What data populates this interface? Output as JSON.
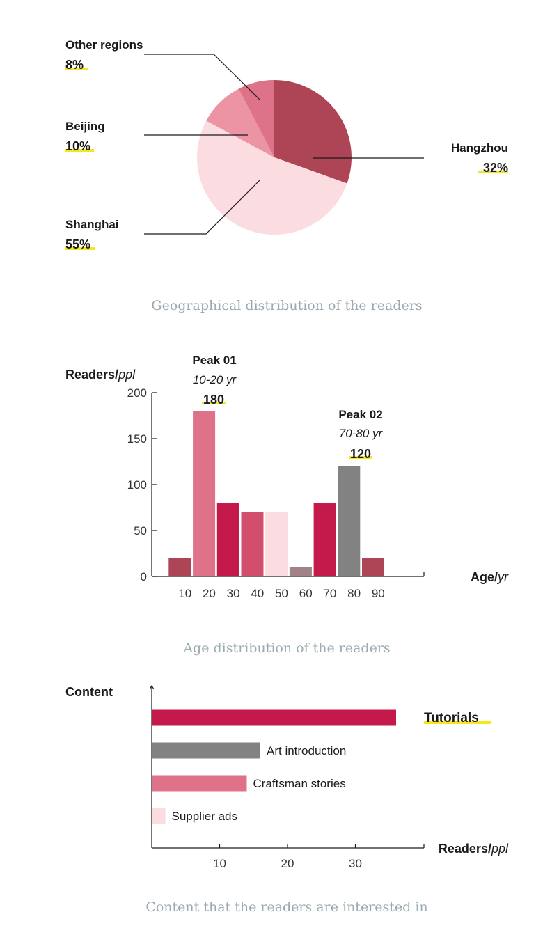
{
  "chart_data": [
    {
      "type": "pie",
      "categories": [
        "Hangzhou",
        "Shanghai",
        "Beijing",
        "Other regions"
      ],
      "values": [
        32,
        55,
        10,
        8
      ],
      "value_labels": [
        "32%",
        "55%",
        "10%",
        "8%"
      ],
      "colors": [
        "#ae4557",
        "#fbdce0",
        "#ec93a4",
        "#dd7289"
      ],
      "title": "Geographical distribution of the readers"
    },
    {
      "type": "bar",
      "categories": [
        "0-10",
        "10-20",
        "20-30",
        "30-40",
        "40-50",
        "50-60",
        "60-70",
        "70-80",
        "80-90"
      ],
      "values": [
        20,
        180,
        80,
        70,
        70,
        10,
        80,
        120,
        20
      ],
      "colors": [
        "#ae4557",
        "#dd7289",
        "#c41a4b",
        "#d14e6c",
        "#fbdce0",
        "#a18286",
        "#c41a4b",
        "#828282",
        "#ae4557"
      ],
      "x_ticks": [
        "10",
        "20",
        "30",
        "40",
        "50",
        "60",
        "70",
        "80",
        "90"
      ],
      "y_ticks": [
        "0",
        "50",
        "100",
        "150",
        "200"
      ],
      "ylim": [
        0,
        200
      ],
      "xlabel": "Age",
      "xlabel_unit": "yr",
      "ylabel": "Readers",
      "ylabel_unit": "ppl",
      "annotations": [
        {
          "title": "Peak 01",
          "range": "10-20 yr",
          "value": "180",
          "category": "10-20"
        },
        {
          "title": "Peak 02",
          "range": "70-80 yr",
          "value": "120",
          "category": "70-80"
        }
      ],
      "title": "Age distribution of the readers"
    },
    {
      "type": "bar",
      "orientation": "horizontal",
      "categories": [
        "Tutorials",
        "Art introduction",
        "Craftsman stories",
        "Supplier ads"
      ],
      "values": [
        36,
        16,
        14,
        2
      ],
      "colors": [
        "#c41a4b",
        "#828282",
        "#dd7289",
        "#fbdce0"
      ],
      "highlighted": "Tutorials",
      "x_ticks": [
        "10",
        "20",
        "30"
      ],
      "xlim": [
        0,
        40
      ],
      "xlabel": "Readers",
      "xlabel_unit": "ppl",
      "ylabel": "Content",
      "title": "Content that the readers are interested in"
    }
  ]
}
